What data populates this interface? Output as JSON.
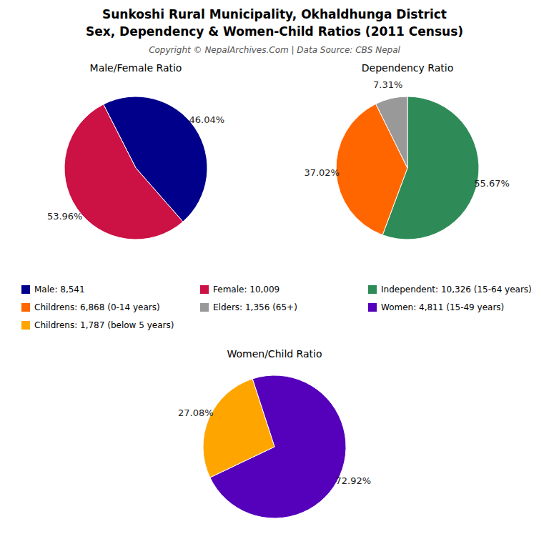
{
  "title": "Sunkoshi Rural Municipality, Okhaldhunga District",
  "subtitle": "Sex, Dependency & Women-Child Ratios (2011 Census)",
  "annotations": [
    "Copyright © NepalArchives.Com | Data Source: CBS Nepal"
  ],
  "chart_data": [
    {
      "type": "pie",
      "title": "Male/Female Ratio",
      "categories": [
        "Male: 8,541",
        "Female: 10,009"
      ],
      "values": [
        46.04,
        53.96
      ],
      "value_labels": [
        "46.04%",
        "53.96%"
      ],
      "colors": [
        "#00008B",
        "#CC1144"
      ],
      "data_labels": true,
      "legend": "bottom"
    },
    {
      "type": "pie",
      "title": "Dependency Ratio",
      "categories": [
        "Independent: 10,326 (15-64 years)",
        "Childrens: 6,868 (0-14 years)",
        "Elders: 1,356 (65+)"
      ],
      "values": [
        55.67,
        37.02,
        7.31
      ],
      "value_labels": [
        "55.67%",
        "37.02%",
        "7.31%"
      ],
      "colors": [
        "#2E8B57",
        "#FF6600",
        "#999999"
      ],
      "data_labels": true,
      "legend": "bottom"
    },
    {
      "type": "pie",
      "title": "Women/Child Ratio",
      "categories": [
        "Women: 4,811 (15-49 years)",
        "Childrens: 1,787 (below 5 years)"
      ],
      "values": [
        72.92,
        27.08
      ],
      "value_labels": [
        "72.92%",
        "27.08%"
      ],
      "colors": [
        "#5500BB",
        "#FFA500"
      ],
      "data_labels": true,
      "legend": "top"
    }
  ]
}
